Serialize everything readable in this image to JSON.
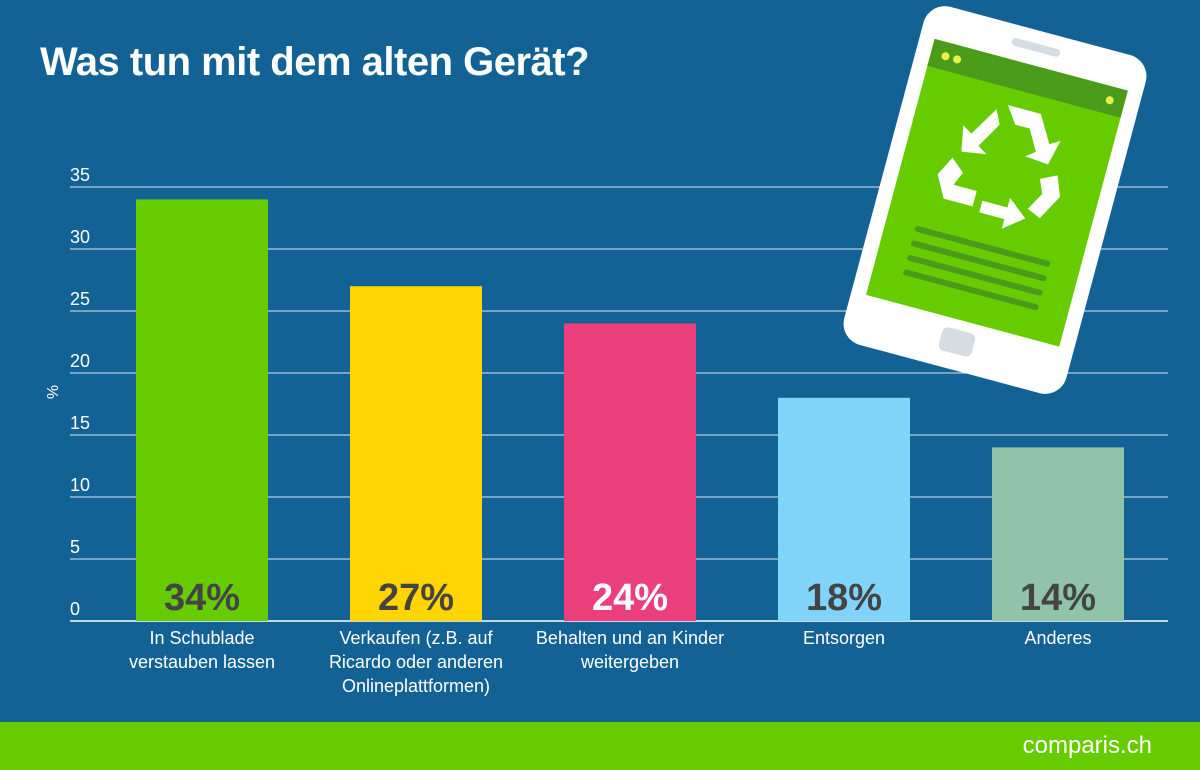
{
  "title": "Was tun mit dem alten Gerät?",
  "brand": "comparis.ch",
  "colors": {
    "background": "#136296",
    "footer": "#66cc00",
    "value_label_dark": "#444444",
    "value_label_light": "#ffffff"
  },
  "chart_data": {
    "type": "bar",
    "ylabel": "%",
    "xlabel": "",
    "ylim": [
      0,
      35
    ],
    "yticks": [
      0,
      5,
      10,
      15,
      20,
      25,
      30,
      35
    ],
    "grid": true,
    "categories": [
      [
        "In Schublade",
        "verstauben lassen"
      ],
      [
        "Verkaufen (z.B. auf",
        "Ricardo oder anderen",
        "Onlineplattformen)"
      ],
      [
        "Behalten und an Kinder",
        "weitergeben"
      ],
      [
        "Entsorgen"
      ],
      [
        "Anderes"
      ]
    ],
    "values": [
      34,
      27,
      24,
      18,
      14
    ],
    "data_labels": [
      "34%",
      "27%",
      "24%",
      "18%",
      "14%"
    ],
    "bar_colors": [
      "#66cc00",
      "#ffd500",
      "#ea3f7b",
      "#80d4fa",
      "#90c3aa"
    ],
    "label_colors": [
      "#444444",
      "#444444",
      "#ffffff",
      "#444444",
      "#444444"
    ]
  }
}
